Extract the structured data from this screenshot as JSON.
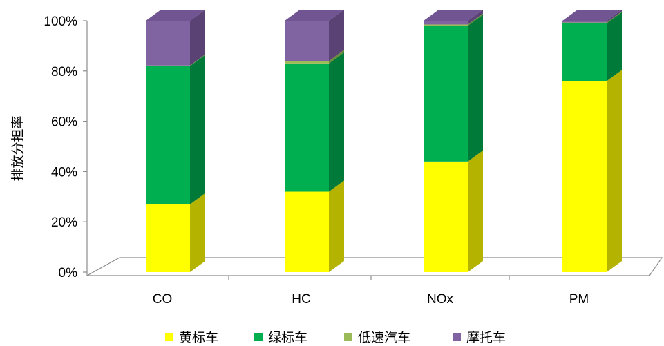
{
  "chart_data": {
    "type": "bar",
    "stacked": "percent",
    "three_d": true,
    "categories": [
      "CO",
      "HC",
      "NOx",
      "PM"
    ],
    "series": [
      {
        "name": "黄标车",
        "color": "#ffff00",
        "side": "#b3b300",
        "top": "#e6e600",
        "values": [
          27,
          32,
          44,
          76
        ]
      },
      {
        "name": "绿标车",
        "color": "#00b050",
        "side": "#007a38",
        "top": "#00a048",
        "values": [
          55,
          51,
          54,
          23
        ]
      },
      {
        "name": "低速汽车",
        "color": "#9bbb59",
        "side": "#6b8a3a",
        "top": "#8aab48",
        "values": [
          0.2,
          1,
          0.5,
          0.3
        ]
      },
      {
        "name": "摩托车",
        "color": "#8064a2",
        "side": "#5a4274",
        "top": "#705592",
        "values": [
          17.8,
          16,
          1.5,
          0.7
        ]
      }
    ],
    "ylabel": "排放分担率",
    "xlabel": "",
    "ylim": [
      0,
      100
    ],
    "yticks": [
      "0%",
      "20%",
      "40%",
      "60%",
      "80%",
      "100%"
    ],
    "legend_position": "bottom",
    "grid": false
  }
}
